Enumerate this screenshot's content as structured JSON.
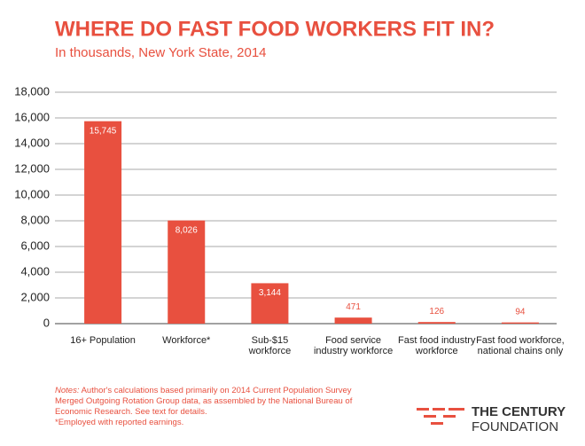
{
  "chart_data": {
    "type": "bar",
    "title": "WHERE DO FAST FOOD WORKERS FIT IN?",
    "subtitle": "In thousands, New York State, 2014",
    "categories": [
      [
        "16+ Population"
      ],
      [
        "Workforce*"
      ],
      [
        "Sub-$15",
        "workforce"
      ],
      [
        "Food service",
        "industry workforce"
      ],
      [
        "Fast food industry",
        "workforce"
      ],
      [
        "Fast food workforce,",
        "national chains only"
      ]
    ],
    "values": [
      15745,
      8026,
      3144,
      471,
      126,
      94
    ],
    "value_labels": [
      "15,745",
      "8,026",
      "3,144",
      "471",
      "126",
      "94"
    ],
    "color": "#e8503f",
    "ylim": [
      0,
      18000
    ],
    "yticks": [
      0,
      {
        "value": 2000,
        "label": "2,000"
      },
      {
        "value": 4000,
        "label": "4,000"
      },
      {
        "value": 6000,
        "label": "6,000"
      },
      {
        "value": 8000,
        "label": "8,000"
      },
      {
        "value": 10000,
        "label": "10,000"
      },
      {
        "value": 12000,
        "label": "12,000"
      },
      {
        "value": 14000,
        "label": "14,000"
      },
      {
        "value": 16000,
        "label": "16,000"
      },
      {
        "value": 18000,
        "label": "18,000"
      }
    ],
    "grid": true,
    "notes_label": "Notes:",
    "notes": [
      " Author's calculations based primarily on 2014 Current Population Survey",
      " Merged Outgoing Rotation Group data, as assembled by the National Bureau of",
      "Economic Research. See text for details.",
      "*Employed with reported earnings."
    ],
    "logo": [
      "THE CENTURY",
      "FOUNDATION"
    ]
  }
}
